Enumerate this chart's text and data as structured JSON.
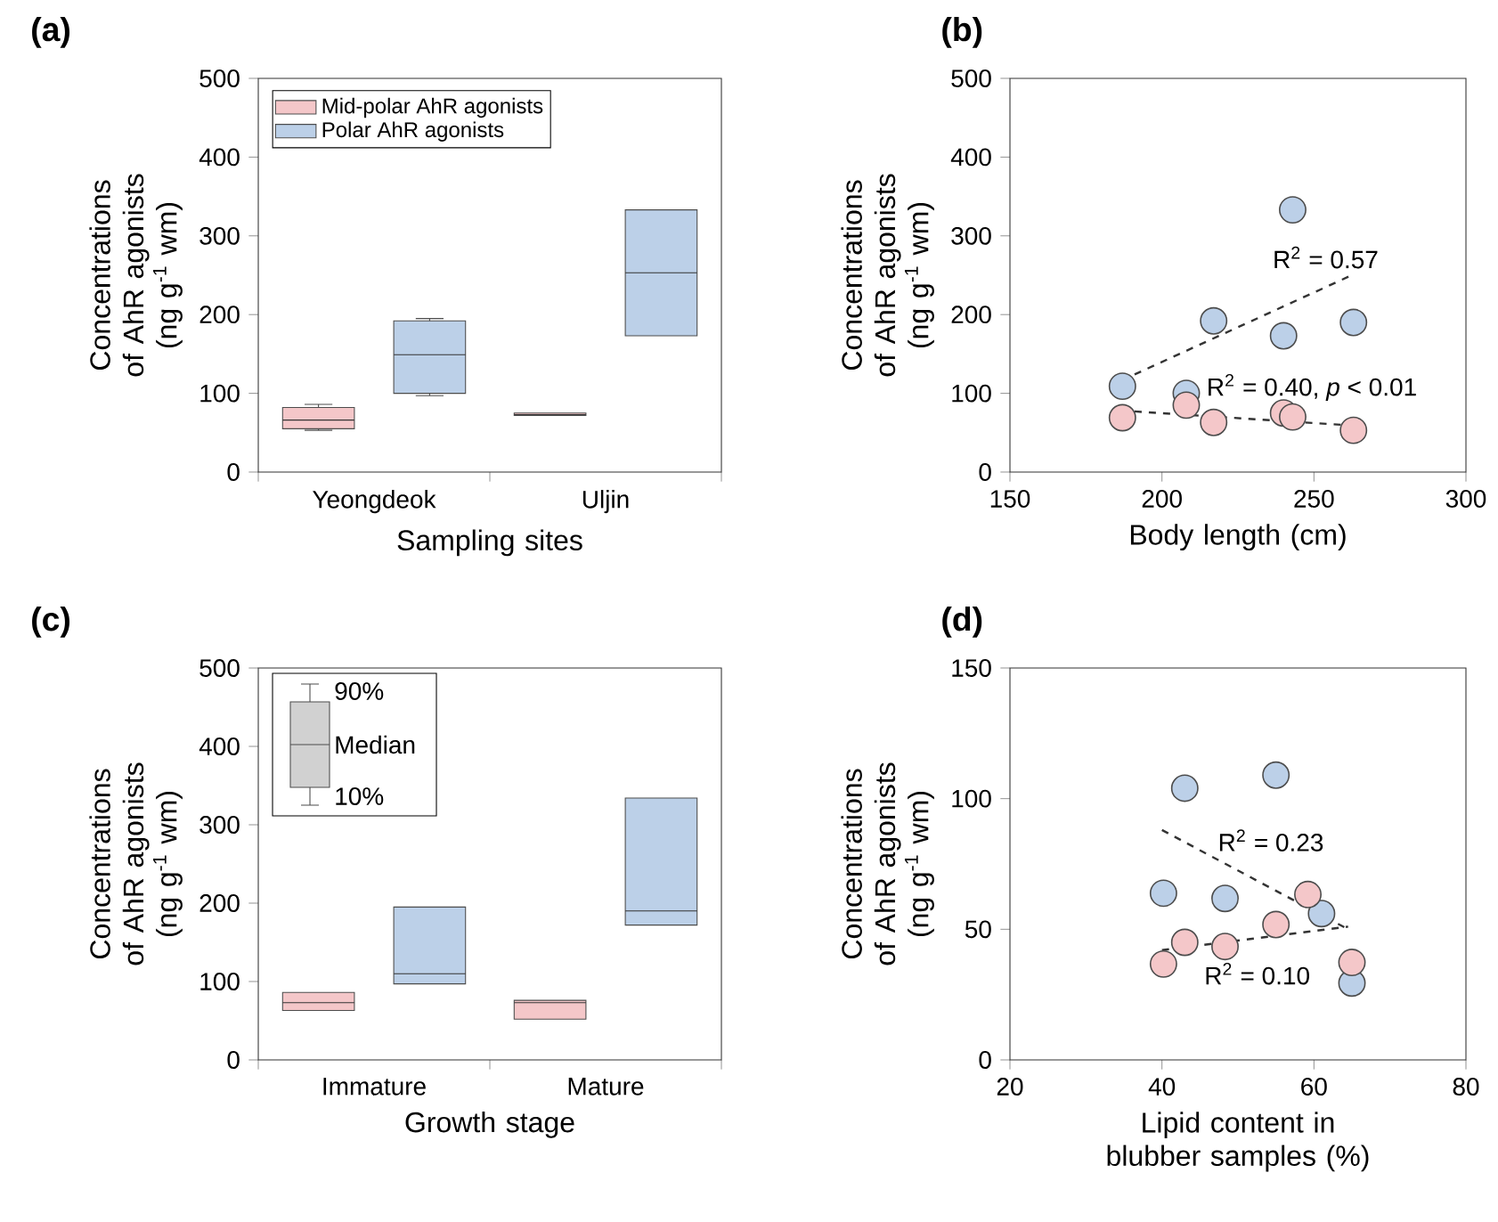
{
  "chart_data": [
    {
      "type": "box",
      "title": "(a)",
      "xlabel": "Sampling sites",
      "ylabel": "Concentrations of AhR agonists (ng g$^{-1}$ wm)",
      "categories": [
        "Yeongdeok",
        "Uljin"
      ],
      "ylim": [
        0,
        500
      ],
      "yticks": [
        0,
        100,
        200,
        300,
        400,
        500
      ],
      "legend": "top left",
      "series": [
        {
          "name": "Mid-polar AhR agonists",
          "color": "#f4c7c9",
          "boxes": [
            {
              "low": 53,
              "q1": 55,
              "median": 66,
              "q3": 82,
              "high": 86
            },
            {
              "low": 72,
              "q1": 72,
              "median": 73,
              "q3": 75,
              "high": 75
            }
          ]
        },
        {
          "name": "Polar AhR agonists",
          "color": "#bcd0e8",
          "boxes": [
            {
              "low": 97,
              "q1": 100,
              "median": 149,
              "q3": 192,
              "high": 195
            },
            {
              "low": 173,
              "q1": 173,
              "median": 253,
              "q3": 333,
              "high": 333
            }
          ]
        }
      ]
    },
    {
      "type": "scatter",
      "title": "(b)",
      "xlabel": "Body length (cm)",
      "ylabel": "Concentrations of AhR agonists (ng g$^{-1}$ wm)",
      "xlim": [
        150,
        300
      ],
      "xticks": [
        150,
        200,
        250,
        300
      ],
      "ylim": [
        0,
        500
      ],
      "yticks": [
        0,
        100,
        200,
        300,
        400,
        500
      ],
      "series": [
        {
          "color": "#bcd0e8",
          "marker": "circle",
          "x": [
            187,
            208,
            217,
            240,
            243,
            263
          ],
          "values": [
            109,
            100,
            192,
            173,
            333,
            190
          ]
        },
        {
          "color": "#f4c7c9",
          "marker": "circle",
          "x": [
            187,
            208,
            217,
            240,
            243,
            263
          ],
          "values": [
            69,
            85,
            63,
            75,
            70,
            53
          ]
        },
        {
          "type": "line",
          "color": "#333333",
          "line_style": "dashed",
          "x": [
            191,
            263
          ],
          "values": [
            124,
            251
          ]
        },
        {
          "type": "line",
          "color": "#333333",
          "line_style": "dashed",
          "x": [
            191,
            259
          ],
          "values": [
            77,
            60
          ]
        }
      ],
      "annotations": [
        "R$^{2}$ = 0.57",
        "R$^{2}$ = 0.40, *p* < 0.01"
      ]
    },
    {
      "type": "box",
      "title": "(c)",
      "xlabel": "Growth stage",
      "ylabel": "Concentrations of AhR agonists (ng g$^{-1}$ wm)",
      "categories": [
        "Immature",
        "Mature"
      ],
      "ylim": [
        0,
        500
      ],
      "yticks": [
        0,
        100,
        200,
        300,
        400,
        500
      ],
      "series": [
        {
          "color": "#f4c7c9",
          "boxes": [
            {
              "low": 63,
              "q1": 63,
              "median": 73,
              "q3": 86,
              "high": 86
            },
            {
              "low": 52,
              "q1": 52,
              "median": 73,
              "q3": 76,
              "high": 76
            }
          ]
        },
        {
          "color": "#bcd0e8",
          "boxes": [
            {
              "low": 97,
              "q1": 97,
              "median": 110,
              "q3": 195,
              "high": 195
            },
            {
              "low": 172,
              "q1": 172,
              "median": 190,
              "q3": 334,
              "high": 334
            }
          ]
        }
      ],
      "annotations": [
        "90%",
        "Median",
        "10%"
      ]
    },
    {
      "type": "scatter",
      "title": "(d)",
      "xlabel": "Lipid content in blubber samples (%)",
      "ylabel": "Concentrations of AhR agonists (ng g$^{-1}$ wm)",
      "xlim": [
        20,
        80
      ],
      "xticks": [
        20,
        40,
        60,
        80
      ],
      "ylim": [
        0,
        150
      ],
      "yticks": [
        0,
        50,
        100,
        150
      ],
      "series": [
        {
          "color": "#bcd0e8",
          "marker": "circle",
          "x": [
            40.2,
            43,
            48.3,
            55,
            61,
            65
          ],
          "values": [
            63.8,
            104,
            61.8,
            109,
            56,
            29.4
          ]
        },
        {
          "color": "#f4c7c9",
          "marker": "circle",
          "x": [
            40.2,
            43,
            48.3,
            55,
            59.2,
            65
          ],
          "values": [
            36.7,
            45,
            43.4,
            51.8,
            63.3,
            37.3
          ]
        },
        {
          "type": "line",
          "color": "#333333",
          "line_style": "dashed",
          "x": [
            40,
            64.5
          ],
          "values": [
            88,
            50
          ]
        },
        {
          "type": "line",
          "color": "#333333",
          "line_style": "dashed",
          "x": [
            40,
            64.5
          ],
          "values": [
            42,
            51
          ]
        }
      ],
      "annotations": [
        "R$^{2}$ = 0.23",
        "R$^{2}$ = 0.10"
      ]
    }
  ]
}
